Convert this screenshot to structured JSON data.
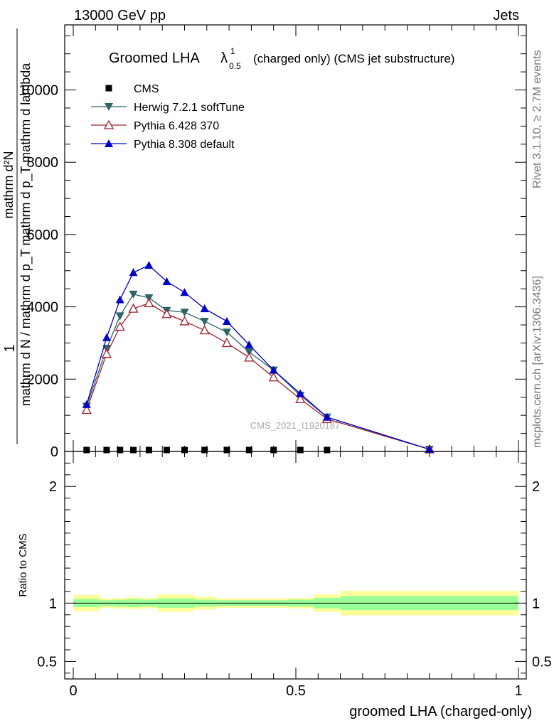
{
  "header": {
    "left": "13000 GeV pp",
    "right": "Jets"
  },
  "side_labels": {
    "rivet": "Rivet 3.1.10, ≥ 2.7M events",
    "mcplots": "mcplots.cern.ch [arXiv:1306.3436]"
  },
  "watermark": "CMS_2021_I1920187",
  "colors": {
    "cms": "#000000",
    "herwig": "#2e6464",
    "pythia6": "#a0202c",
    "pythia8": "#0000cc",
    "band_inner": "#99ff99",
    "band_outer": "#ffff99"
  },
  "chart_data": [
    {
      "type": "line",
      "title_main": "Groomed LHA",
      "title_symbol": "λ",
      "title_sup": "1",
      "title_sub": "0.5",
      "title_rest": "(charged only) (CMS jet substructure)",
      "ylabel_top": "1",
      "ylabel_bottom_lines": [
        "mathrm d N / mathrm d p",
        "mathrm d p",
        "mathrm d lambda"
      ],
      "ylabel_frac_lines": [
        "mathrm d²N",
        "mathrm d p",
        "T",
        "mathrm d p",
        "T",
        "mathrm d p",
        "mathrm d lambda"
      ],
      "ylabel_text": "mathrm d N / mathrm d p_T mathrm d p_T mathrm d lambda",
      "xlim": [
        0,
        1
      ],
      "ylim": [
        0,
        11800
      ],
      "yticks": [
        2000,
        4000,
        6000,
        8000,
        10000
      ],
      "ytick_labels": [
        "2000",
        "4000",
        "6000",
        "8000",
        "10000"
      ],
      "zero_label": "0",
      "legend_position": "top-left",
      "series": [
        {
          "name": "CMS",
          "marker": "square",
          "x": [
            0.03,
            0.075,
            0.105,
            0.135,
            0.17,
            0.21,
            0.25,
            0.295,
            0.345,
            0.395,
            0.45,
            0.51,
            0.57
          ],
          "y": [
            0,
            0,
            0,
            0,
            0,
            0,
            0,
            0,
            0,
            0,
            0,
            0,
            0
          ]
        },
        {
          "name": "Herwig 7.2.1 softTune",
          "marker": "triangle-down",
          "x": [
            0.03,
            0.075,
            0.105,
            0.135,
            0.17,
            0.21,
            0.25,
            0.295,
            0.345,
            0.395,
            0.45,
            0.51,
            0.57,
            0.8
          ],
          "y": [
            1250,
            2850,
            3750,
            4350,
            4250,
            3900,
            3850,
            3600,
            3300,
            2750,
            2250,
            1550,
            950,
            60
          ]
        },
        {
          "name": "Pythia 6.428 370",
          "marker": "triangle-up-open",
          "x": [
            0.03,
            0.075,
            0.105,
            0.135,
            0.17,
            0.21,
            0.25,
            0.295,
            0.345,
            0.395,
            0.45,
            0.51,
            0.57,
            0.8
          ],
          "y": [
            1150,
            2700,
            3450,
            3950,
            4100,
            3800,
            3600,
            3350,
            3000,
            2600,
            2050,
            1450,
            900,
            60
          ]
        },
        {
          "name": "Pythia 8.308 default",
          "marker": "triangle-up",
          "x": [
            0.03,
            0.075,
            0.105,
            0.135,
            0.17,
            0.21,
            0.25,
            0.295,
            0.345,
            0.395,
            0.45,
            0.51,
            0.57,
            0.8
          ],
          "y": [
            1300,
            3150,
            4200,
            4950,
            5150,
            4700,
            4400,
            3950,
            3600,
            2950,
            2250,
            1600,
            950,
            60
          ]
        }
      ]
    },
    {
      "type": "area",
      "ylabel": "Ratio to CMS",
      "xlabel": "groomed LHA (charged-only)",
      "xlim": [
        0,
        1
      ],
      "ylim": [
        0.35,
        2.3
      ],
      "yticks": [
        0.5,
        1,
        2
      ],
      "ytick_labels": [
        "0.5",
        "1",
        "2"
      ],
      "xticks": [
        0,
        0.5,
        1
      ],
      "xtick_labels": [
        "0",
        "0.5",
        "1"
      ],
      "reference_line": 1,
      "bins": [
        {
          "lo": 0.0,
          "hi": 0.06,
          "inner": [
            0.965,
            1.035
          ],
          "outer": [
            0.93,
            1.07
          ]
        },
        {
          "lo": 0.06,
          "hi": 0.09,
          "inner": [
            0.975,
            1.025
          ],
          "outer": [
            0.96,
            1.04
          ]
        },
        {
          "lo": 0.09,
          "hi": 0.12,
          "inner": [
            0.97,
            1.03
          ],
          "outer": [
            0.955,
            1.045
          ]
        },
        {
          "lo": 0.12,
          "hi": 0.15,
          "inner": [
            0.965,
            1.035
          ],
          "outer": [
            0.95,
            1.05
          ]
        },
        {
          "lo": 0.15,
          "hi": 0.19,
          "inner": [
            0.97,
            1.03
          ],
          "outer": [
            0.955,
            1.045
          ]
        },
        {
          "lo": 0.19,
          "hi": 0.23,
          "inner": [
            0.96,
            1.04
          ],
          "outer": [
            0.925,
            1.075
          ]
        },
        {
          "lo": 0.23,
          "hi": 0.27,
          "inner": [
            0.96,
            1.04
          ],
          "outer": [
            0.925,
            1.075
          ]
        },
        {
          "lo": 0.27,
          "hi": 0.32,
          "inner": [
            0.97,
            1.03
          ],
          "outer": [
            0.945,
            1.055
          ]
        },
        {
          "lo": 0.32,
          "hi": 0.37,
          "inner": [
            0.975,
            1.025
          ],
          "outer": [
            0.96,
            1.04
          ]
        },
        {
          "lo": 0.37,
          "hi": 0.42,
          "inner": [
            0.975,
            1.025
          ],
          "outer": [
            0.96,
            1.04
          ]
        },
        {
          "lo": 0.42,
          "hi": 0.48,
          "inner": [
            0.975,
            1.025
          ],
          "outer": [
            0.96,
            1.04
          ]
        },
        {
          "lo": 0.48,
          "hi": 0.54,
          "inner": [
            0.97,
            1.03
          ],
          "outer": [
            0.955,
            1.045
          ]
        },
        {
          "lo": 0.54,
          "hi": 0.6,
          "inner": [
            0.955,
            1.045
          ],
          "outer": [
            0.925,
            1.075
          ]
        },
        {
          "lo": 0.6,
          "hi": 1.0,
          "inner": [
            0.94,
            1.06
          ],
          "outer": [
            0.895,
            1.105
          ]
        }
      ]
    }
  ]
}
